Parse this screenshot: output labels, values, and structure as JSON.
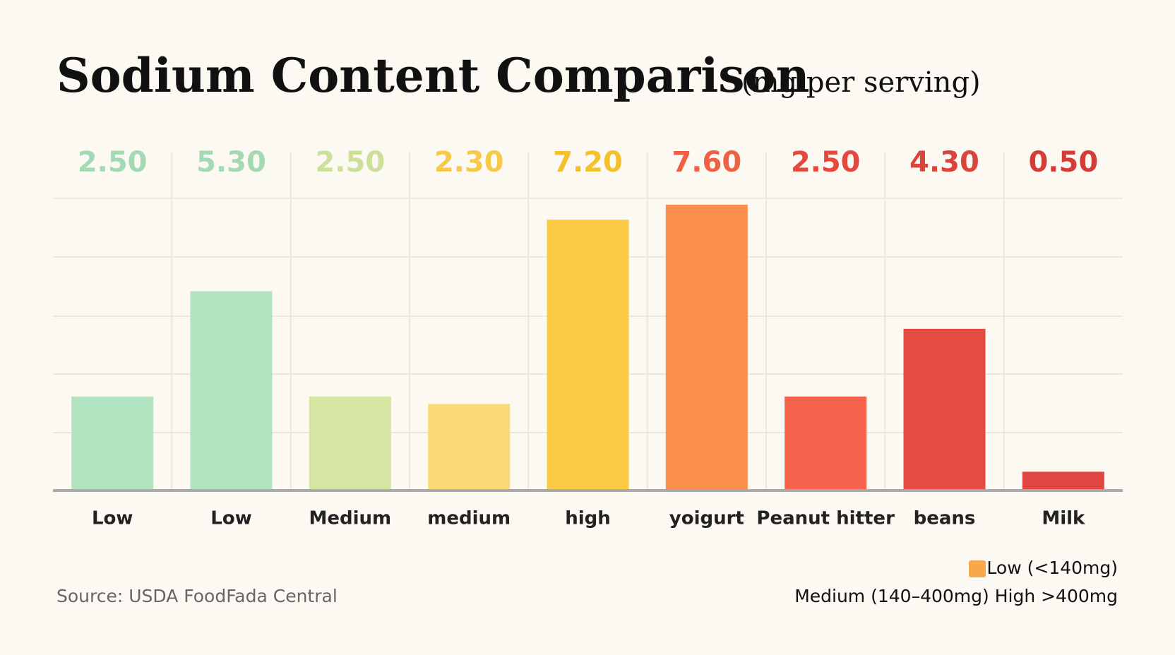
{
  "chart_data": {
    "type": "bar",
    "title": "Sodium Content Comparison",
    "subtitle": "(mg per serving)",
    "categories": [
      "Low",
      "Low",
      "Medium",
      "medium",
      "high",
      "yoigurt",
      "Peanut hitter",
      "beans",
      "Milk"
    ],
    "values": [
      2.5,
      5.3,
      2.5,
      2.3,
      7.2,
      7.6,
      2.5,
      4.3,
      0.5
    ],
    "value_labels": [
      "2.50",
      "5.30",
      "2.50",
      "2.30",
      "7.20",
      "7.60",
      "2.50",
      "4.30",
      "0.50"
    ],
    "colors": [
      "#b2e3c1",
      "#b2e3c1",
      "#d5e6a2",
      "#fcd978",
      "#fcca45",
      "#fb8f4c",
      "#f5634d",
      "#e54c41",
      "#e14541"
    ],
    "label_colors": [
      "#a3dab3",
      "#a3dab3",
      "#cde09a",
      "#f6c94a",
      "#f4c02c",
      "#ee6243",
      "#e5483d",
      "#d9453b",
      "#d33c37"
    ],
    "grid": true,
    "legend": {
      "items": [
        {
          "label": "Low (<140mg)",
          "color": "#f6a84a"
        }
      ],
      "note": "Medium (140–400mg) High >400mg"
    },
    "source": "Source: USDA FoodFada Central"
  }
}
